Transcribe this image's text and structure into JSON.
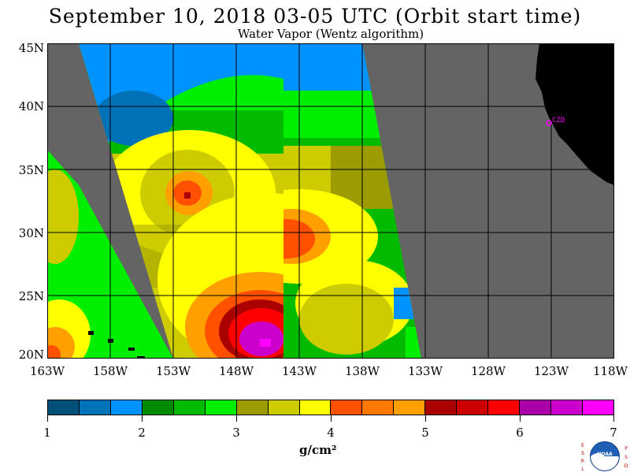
{
  "title": "September 10, 2018  03-05 UTC  (Orbit start time)",
  "subtitle": "Water Vapor (Wentz algorithm)",
  "map": {
    "lat_labels": [
      "45N",
      "40N",
      "35N",
      "30N",
      "25N",
      "20N"
    ],
    "lon_labels": [
      "163W",
      "158W",
      "153W",
      "148W",
      "143W",
      "138W",
      "133W",
      "128W",
      "123W",
      "118W"
    ],
    "station_label": "CZD",
    "colors": {
      "no_data": "#646464",
      "land": "#000000",
      "grid": "#000000",
      "station": "#ff00ff"
    }
  },
  "colorbar": {
    "colors": [
      "#00507a",
      "#0072b8",
      "#0092ff",
      "#008a00",
      "#00bb00",
      "#00ee00",
      "#9c9c00",
      "#cccc00",
      "#ffff00",
      "#ff5000",
      "#ff7800",
      "#ffa000",
      "#aa0000",
      "#cc0000",
      "#ff0000",
      "#aa00aa",
      "#cc00cc",
      "#ff00ff"
    ],
    "tick_labels": [
      "1",
      "2",
      "3",
      "4",
      "5",
      "6",
      "7"
    ],
    "units": "g/cm²"
  },
  "logo": {
    "name": "NOAA",
    "left_letters": [
      "E",
      "S",
      "R",
      "L"
    ],
    "right_letters": [
      "P",
      "S",
      "D"
    ]
  }
}
